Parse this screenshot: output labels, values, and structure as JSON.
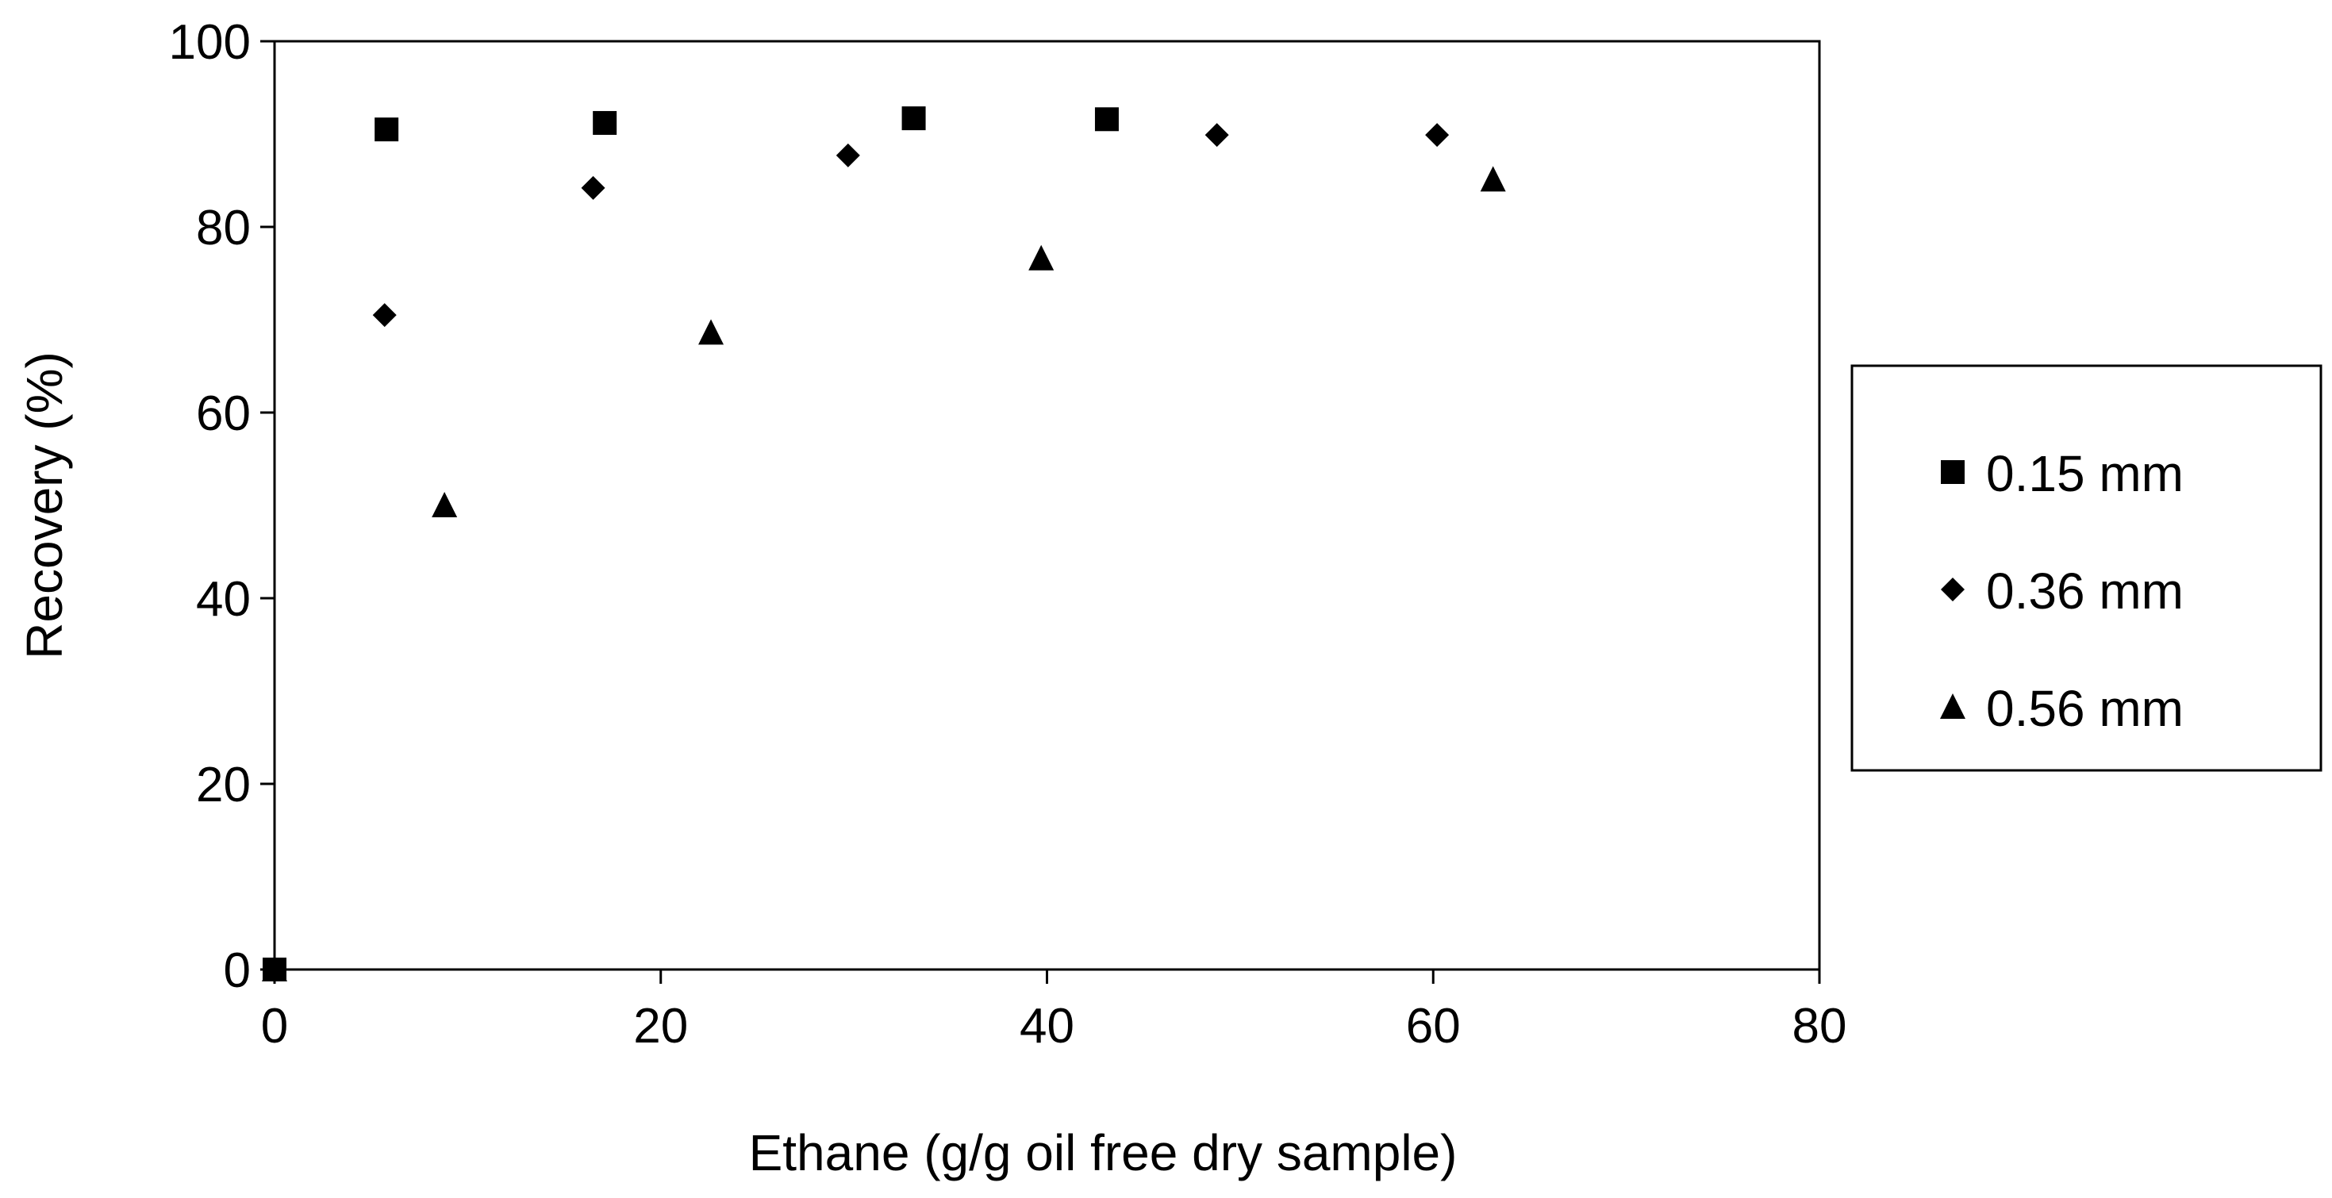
{
  "chart_data": {
    "type": "scatter",
    "xlabel": "Ethane (g/g oil free dry sample)",
    "ylabel": "Recovery (%)",
    "xlim": [
      0,
      80
    ],
    "ylim": [
      0,
      100
    ],
    "x_ticks": [
      "0",
      "20",
      "40",
      "60",
      "80"
    ],
    "y_ticks": [
      "0",
      "20",
      "40",
      "60",
      "80",
      "100"
    ],
    "grid": false,
    "legend_position": "right",
    "series": [
      {
        "name": "0.15 mm",
        "marker": "square",
        "color": "#000000",
        "points": [
          [
            0,
            0
          ],
          [
            5.8,
            90.5
          ],
          [
            17.1,
            91.2
          ],
          [
            33.1,
            91.7
          ],
          [
            43.1,
            91.6
          ]
        ]
      },
      {
        "name": "0.36 mm",
        "marker": "diamond",
        "color": "#000000",
        "points": [
          [
            0,
            0
          ],
          [
            5.7,
            70.5
          ],
          [
            16.5,
            84.2
          ],
          [
            29.7,
            87.7
          ],
          [
            48.8,
            89.9
          ],
          [
            60.2,
            89.9
          ]
        ]
      },
      {
        "name": "0.56 mm",
        "marker": "triangle",
        "color": "#000000",
        "points": [
          [
            0,
            0
          ],
          [
            8.8,
            50.0
          ],
          [
            22.6,
            68.6
          ],
          [
            39.7,
            76.6
          ],
          [
            63.1,
            85.1
          ]
        ]
      }
    ]
  }
}
